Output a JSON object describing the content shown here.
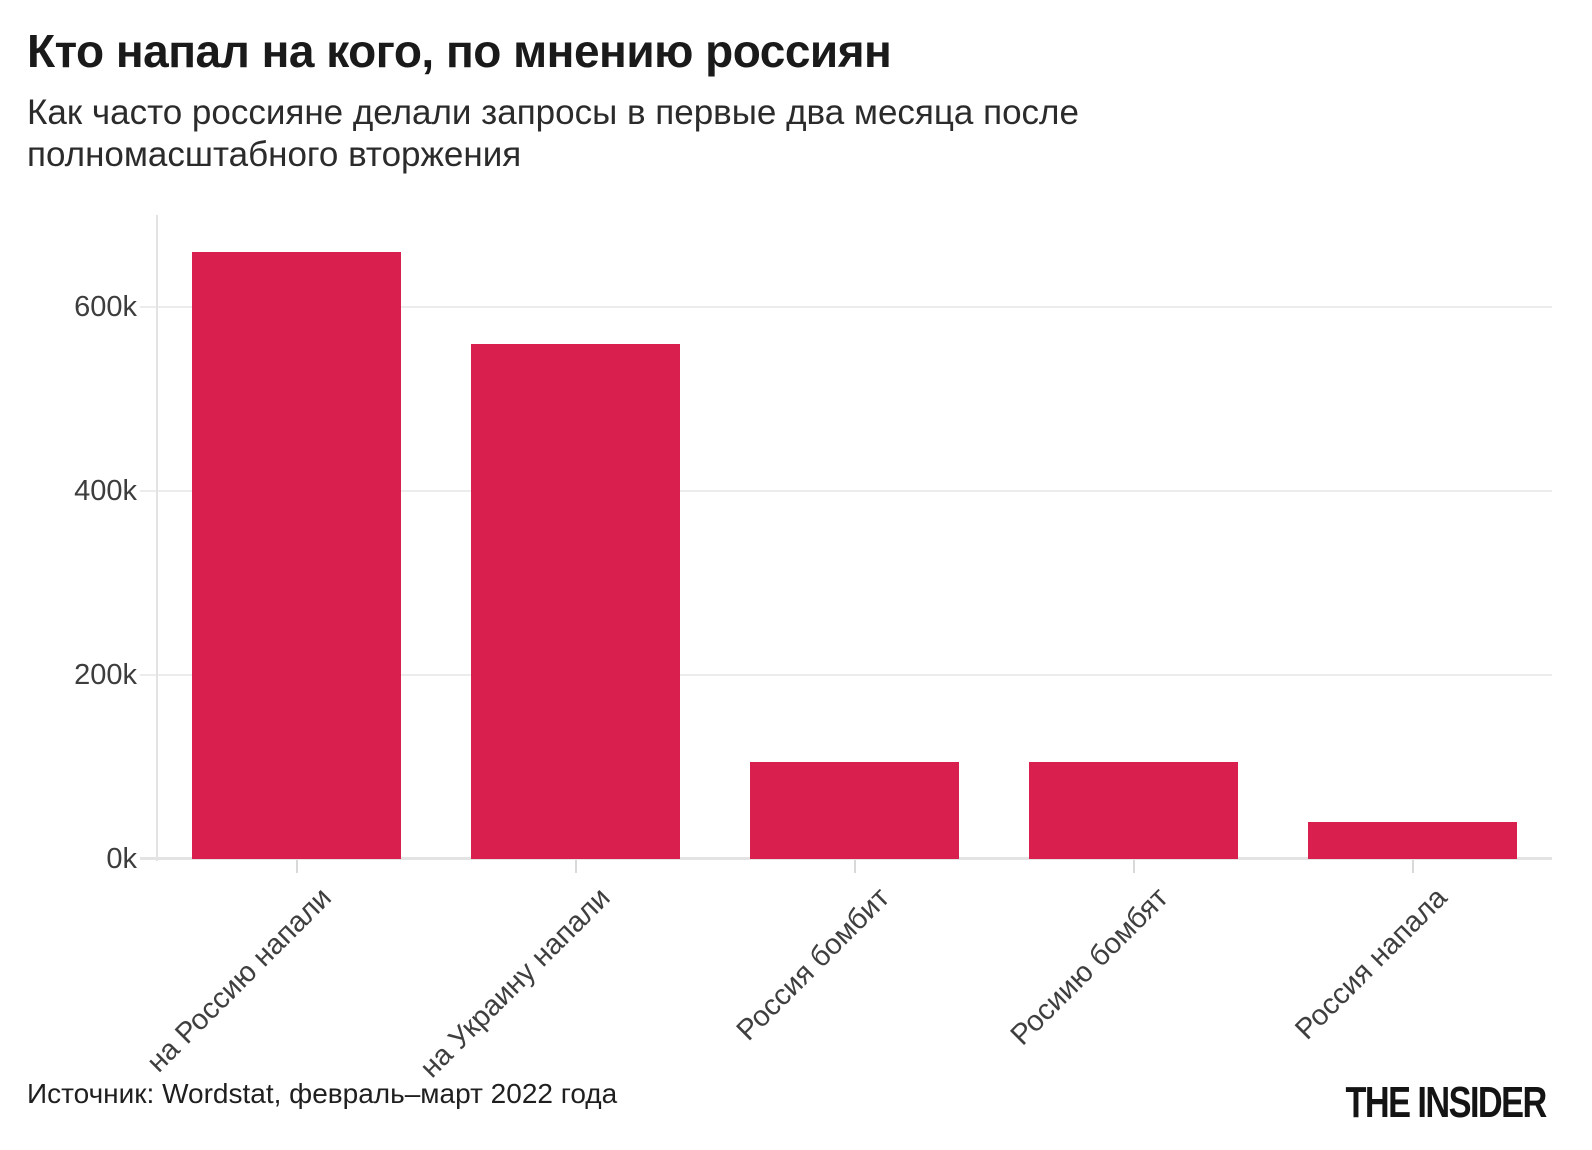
{
  "header": {
    "title": "Кто напал на кого, по мнению россиян",
    "subtitle_lines": [
      "Как часто россияне делали запросы в первые два месяца после",
      "полномасштабного вторжения"
    ]
  },
  "chart_data": {
    "type": "bar",
    "title": "Кто напал на кого, по мнению россиян",
    "subtitle": "Как часто россияне делали запросы в первые два месяца после полномасштабного вторжения",
    "categories": [
      "на Россию напали",
      "на Украину напали",
      "Россия бомбит",
      "Росиию бомбят",
      "Россия напала"
    ],
    "values": [
      660000,
      560000,
      105000,
      105000,
      40000
    ],
    "xlabel": "",
    "ylabel": "",
    "ylim": [
      0,
      700000
    ],
    "yticks": [
      0,
      200000,
      400000,
      600000
    ],
    "ytick_labels": [
      "0k",
      "200k",
      "400k",
      "600k"
    ],
    "x_label_rotation_deg": -45,
    "grid": "horizontal",
    "legend": "none",
    "bar_color": "#d91f4d"
  },
  "footer": {
    "source": "Источник: Wordstat, февраль–март 2022 года",
    "brand": "THE INSIDER"
  }
}
